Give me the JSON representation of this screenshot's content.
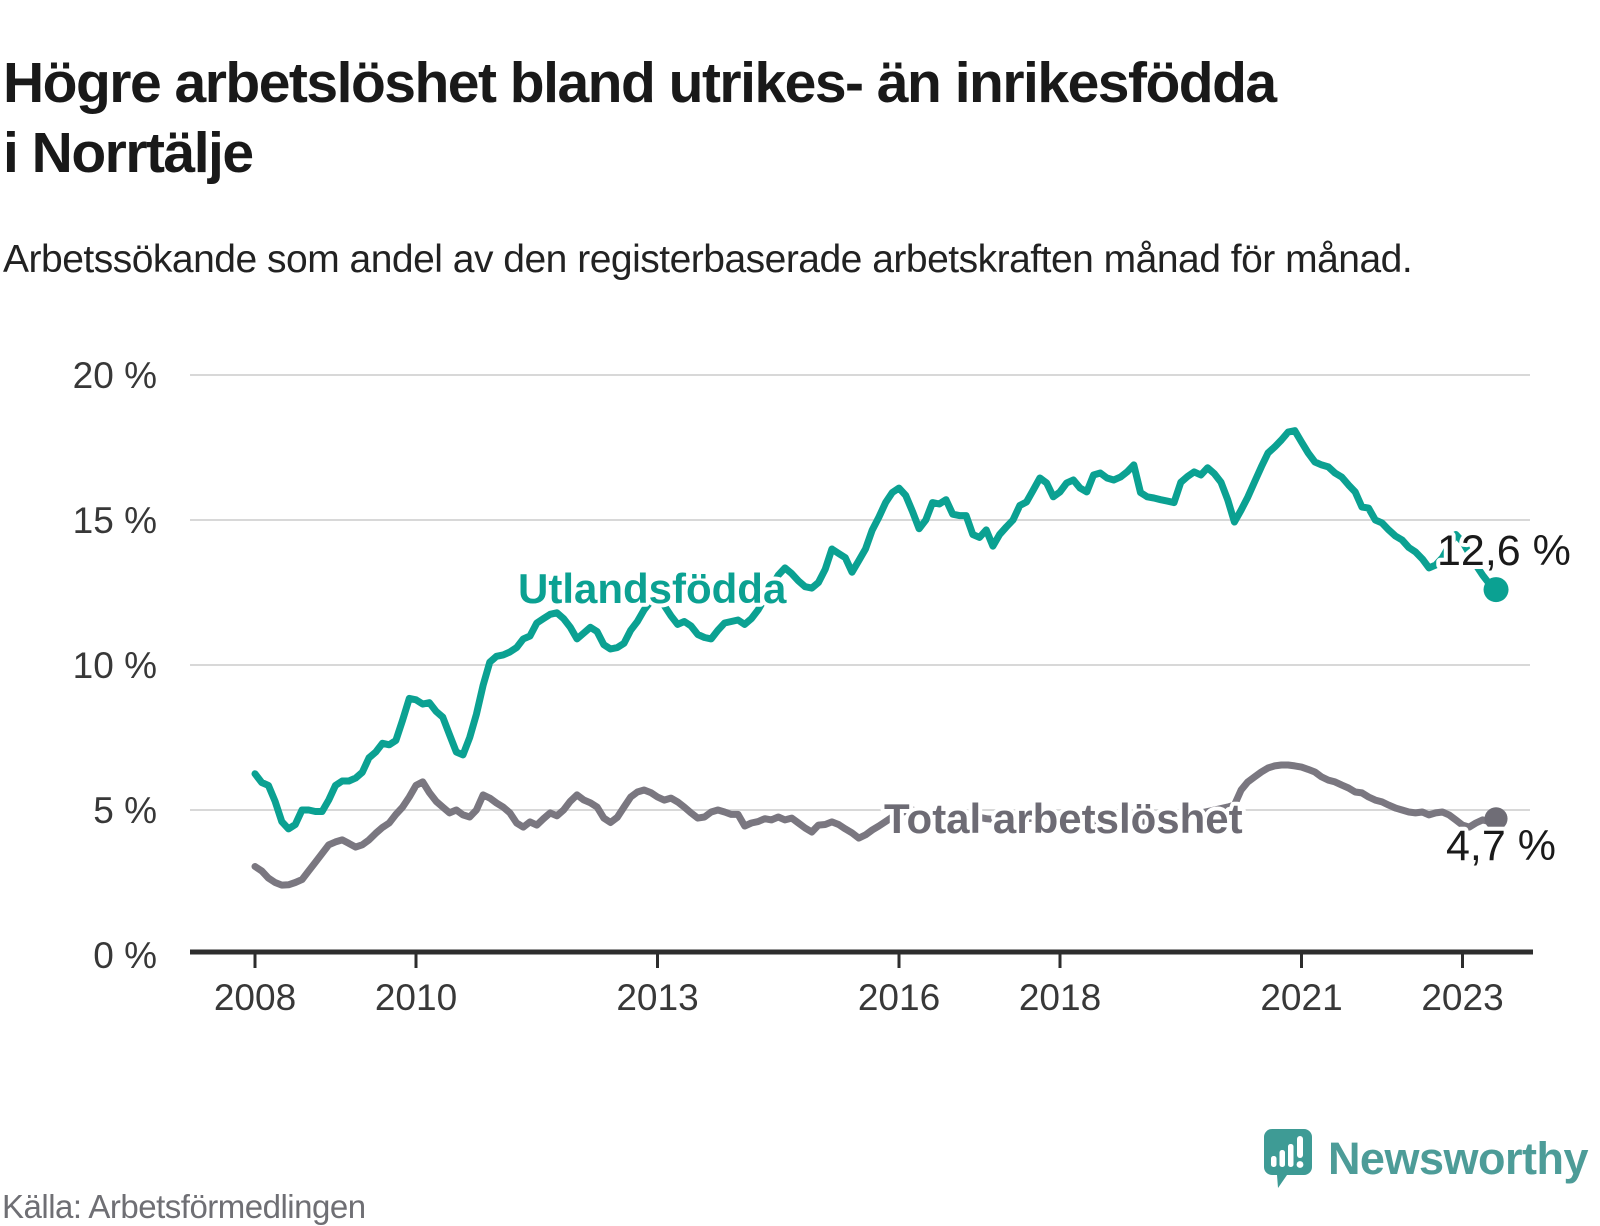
{
  "header": {
    "title": "Högre arbetslöshet bland utrikes- än inrikesfödda i Norrtälje",
    "subtitle": "Arbetssökande som andel av den registerbaserade arbetskraften månad för månad."
  },
  "footer": {
    "source": "Källa: Arbetsförmedlingen",
    "brand": "Newsworthy"
  },
  "colors": {
    "foreign_born": "#0ba192",
    "total": "#7a7780",
    "total_label": "#6d6b74",
    "grid": "#d8d8d8",
    "axis": "#2d2d2d",
    "brand_teal": "#4d9c98"
  },
  "chart_data": {
    "type": "line",
    "title": "Högre arbetslöshet bland utrikes- än inrikesfödda i Norrtälje",
    "xlabel": "",
    "ylabel": "",
    "ylim": [
      0,
      20
    ],
    "grid": true,
    "x_start_year": 2008,
    "x_months_total": 186,
    "x_ticks": [
      {
        "year": 2008,
        "label": "2008"
      },
      {
        "year": 2010,
        "label": "2010"
      },
      {
        "year": 2013,
        "label": "2013"
      },
      {
        "year": 2016,
        "label": "2016"
      },
      {
        "year": 2018,
        "label": "2018"
      },
      {
        "year": 2021,
        "label": "2021"
      },
      {
        "year": 2023,
        "label": "2023"
      }
    ],
    "y_ticks": [
      {
        "value": 0,
        "label": "0 %"
      },
      {
        "value": 5,
        "label": "5 %"
      },
      {
        "value": 10,
        "label": "10 %"
      },
      {
        "value": 15,
        "label": "15 %"
      },
      {
        "value": 20,
        "label": "20 %"
      }
    ],
    "series": [
      {
        "name": "Utlandsfödda",
        "color": "#0ba192",
        "end_label": "12,6 %",
        "end_value": 12.6,
        "values": [
          6.25,
          5.95,
          5.85,
          5.3,
          4.6,
          4.35,
          4.5,
          5.0,
          5.0,
          4.95,
          4.95,
          5.35,
          5.85,
          6.0,
          6.0,
          6.1,
          6.3,
          6.8,
          7.0,
          7.3,
          7.25,
          7.4,
          8.1,
          8.85,
          8.8,
          8.65,
          8.7,
          8.4,
          8.2,
          7.6,
          7.0,
          6.9,
          7.5,
          8.3,
          9.3,
          10.1,
          10.3,
          10.35,
          10.45,
          10.6,
          10.9,
          11.0,
          11.45,
          11.6,
          11.75,
          11.8,
          11.6,
          11.3,
          10.9,
          11.1,
          11.3,
          11.15,
          10.7,
          10.55,
          10.6,
          10.75,
          11.2,
          11.5,
          11.9,
          12.2,
          12.3,
          12.05,
          11.7,
          11.4,
          11.5,
          11.35,
          11.05,
          10.95,
          10.9,
          11.2,
          11.45,
          11.5,
          11.55,
          11.4,
          11.6,
          11.9,
          12.3,
          12.7,
          13.1,
          13.35,
          13.15,
          12.9,
          12.7,
          12.65,
          12.85,
          13.3,
          14.0,
          13.85,
          13.7,
          13.2,
          13.6,
          14.0,
          14.65,
          15.1,
          15.6,
          15.95,
          16.1,
          15.85,
          15.3,
          14.7,
          15.0,
          15.6,
          15.55,
          15.7,
          15.2,
          15.15,
          15.15,
          14.5,
          14.4,
          14.66,
          14.1,
          14.5,
          14.76,
          15.0,
          15.5,
          15.62,
          16.03,
          16.45,
          16.28,
          15.8,
          15.97,
          16.28,
          16.38,
          16.1,
          15.97,
          16.55,
          16.62,
          16.45,
          16.38,
          16.48,
          16.66,
          16.9,
          15.95,
          15.8,
          15.76,
          15.7,
          15.65,
          15.6,
          16.3,
          16.5,
          16.66,
          16.55,
          16.8,
          16.6,
          16.3,
          15.7,
          14.93,
          15.34,
          15.79,
          16.31,
          16.83,
          17.31,
          17.52,
          17.76,
          18.03,
          18.08,
          17.69,
          17.31,
          17.0,
          16.9,
          16.83,
          16.62,
          16.48,
          16.21,
          15.97,
          15.45,
          15.41,
          15.0,
          14.9,
          14.66,
          14.45,
          14.31,
          14.05,
          13.9,
          13.66,
          13.35,
          13.45,
          13.7,
          14.1,
          14.5,
          14.25,
          13.85,
          13.45,
          13.1,
          12.8,
          12.6
        ]
      },
      {
        "name": "Total arbetslöshet",
        "color": "#7a7780",
        "end_label": "4,7 %",
        "end_value": 4.7,
        "values": [
          3.05,
          2.9,
          2.65,
          2.5,
          2.41,
          2.42,
          2.5,
          2.6,
          2.9,
          3.2,
          3.5,
          3.8,
          3.9,
          3.97,
          3.85,
          3.72,
          3.8,
          3.97,
          4.2,
          4.4,
          4.55,
          4.85,
          5.1,
          5.45,
          5.85,
          5.97,
          5.6,
          5.3,
          5.1,
          4.9,
          5.0,
          4.83,
          4.76,
          5.0,
          5.52,
          5.41,
          5.24,
          5.1,
          4.9,
          4.55,
          4.41,
          4.59,
          4.48,
          4.7,
          4.9,
          4.8,
          5.0,
          5.3,
          5.52,
          5.35,
          5.25,
          5.1,
          4.72,
          4.57,
          4.75,
          5.1,
          5.45,
          5.62,
          5.69,
          5.6,
          5.45,
          5.34,
          5.41,
          5.28,
          5.1,
          4.9,
          4.72,
          4.76,
          4.93,
          5.0,
          4.93,
          4.85,
          4.85,
          4.45,
          4.55,
          4.6,
          4.7,
          4.66,
          4.76,
          4.66,
          4.72,
          4.55,
          4.38,
          4.24,
          4.48,
          4.5,
          4.59,
          4.5,
          4.35,
          4.21,
          4.03,
          4.14,
          4.31,
          4.45,
          4.6,
          4.76,
          4.9,
          4.95,
          5.0,
          4.95,
          4.9,
          4.85,
          4.8,
          4.78,
          4.82,
          4.8,
          4.75,
          4.78,
          4.75,
          4.7,
          4.68,
          4.72,
          4.78,
          4.8,
          4.75,
          4.7,
          4.72,
          4.78,
          4.8,
          4.76,
          4.72,
          4.68,
          4.62,
          4.58,
          4.55,
          4.5,
          4.48,
          4.52,
          4.55,
          4.58,
          4.55,
          4.6,
          4.62,
          4.6,
          4.58,
          4.62,
          4.68,
          4.72,
          4.75,
          4.8,
          4.85,
          4.9,
          4.95,
          5.0,
          5.05,
          5.1,
          5.17,
          5.69,
          5.97,
          6.14,
          6.31,
          6.45,
          6.52,
          6.55,
          6.55,
          6.52,
          6.48,
          6.4,
          6.31,
          6.14,
          6.03,
          5.97,
          5.86,
          5.76,
          5.62,
          5.59,
          5.45,
          5.34,
          5.28,
          5.17,
          5.07,
          5.0,
          4.93,
          4.9,
          4.93,
          4.83,
          4.9,
          4.93,
          4.83,
          4.66,
          4.48,
          4.41,
          4.55,
          4.66,
          4.6,
          4.7
        ]
      }
    ],
    "legend_position": "inline-labels"
  }
}
